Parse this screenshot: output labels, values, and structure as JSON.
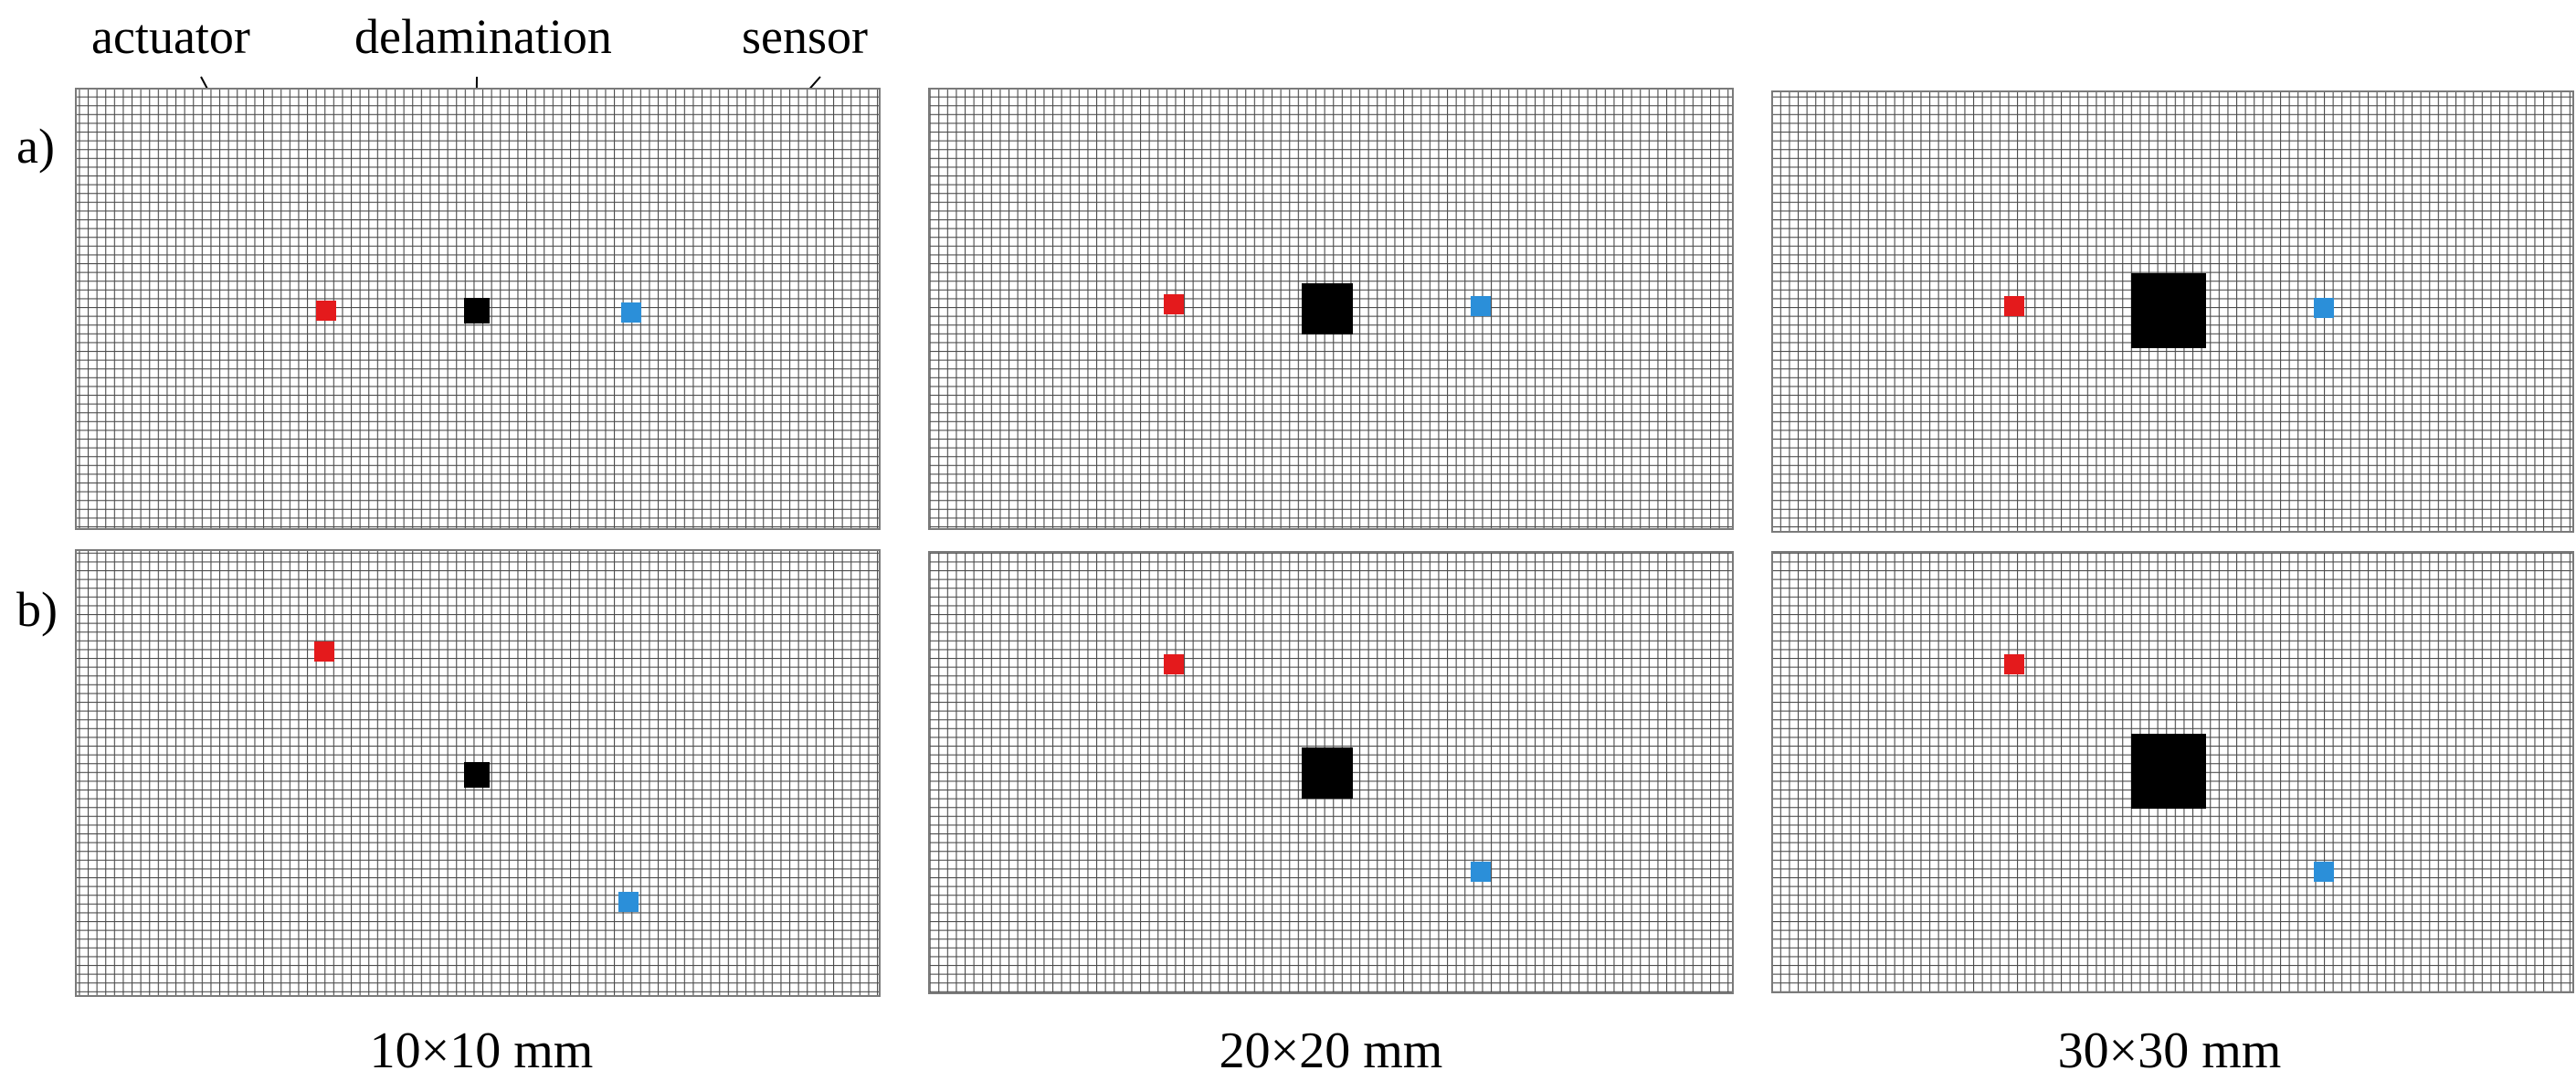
{
  "annotations": {
    "actuator_label": "actuator",
    "delamination_label": "delamination",
    "sensor_label": "sensor"
  },
  "rows": [
    {
      "label": "a)"
    },
    {
      "label": "b)"
    }
  ],
  "columns": [
    {
      "caption": "10×10 mm"
    },
    {
      "caption": "20×20 mm"
    },
    {
      "caption": "30×30 mm"
    }
  ],
  "colors": {
    "actuator": "#e41a1c",
    "sensor": "#2b8fd9",
    "delamination": "#000000",
    "mesh_line": "#4a4a4a",
    "panel_border": "#7a7a7a"
  }
}
